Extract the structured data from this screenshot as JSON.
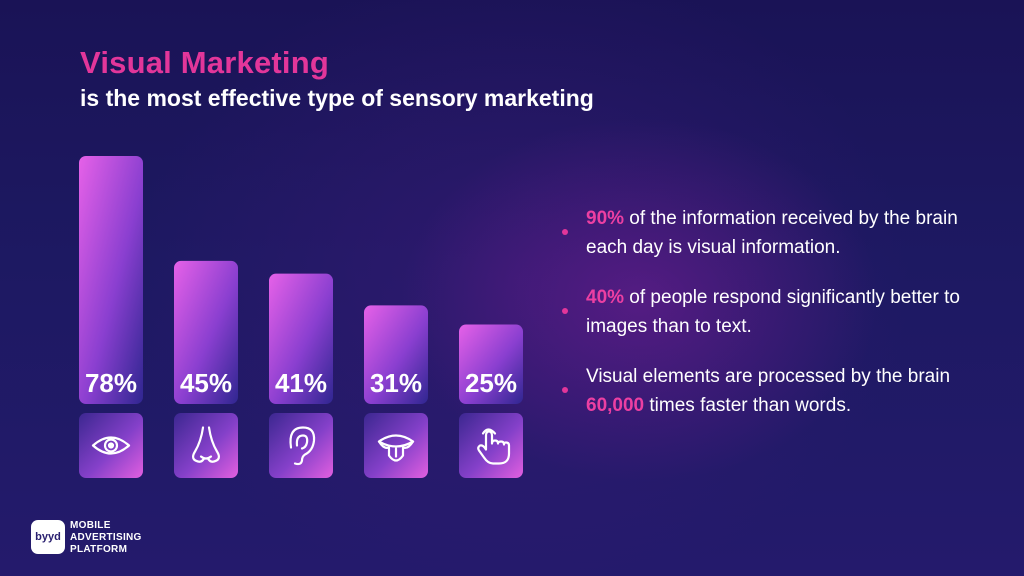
{
  "header": {
    "title": "Visual Marketing",
    "subtitle": "is the most effective type of sensory marketing"
  },
  "chart_data": {
    "type": "bar",
    "categories": [
      "sight",
      "smell",
      "hearing",
      "taste",
      "touch"
    ],
    "values": [
      78,
      45,
      41,
      31,
      25
    ],
    "value_labels": [
      "78%",
      "45%",
      "41%",
      "31%",
      "25%"
    ],
    "icons": [
      "eye-icon",
      "nose-icon",
      "ear-icon",
      "tongue-icon",
      "hand-touch-icon"
    ],
    "title": "",
    "xlabel": "",
    "ylabel": "",
    "ylim": [
      0,
      100
    ],
    "grid": false,
    "bar_gradient": [
      "#e661e8",
      "#3a2a9a"
    ]
  },
  "facts": [
    {
      "highlight": "90%",
      "pre": "",
      "post": " of the information received by the brain each day is visual information."
    },
    {
      "highlight": "40%",
      "pre": "",
      "post": " of people respond significantly better to images than to text."
    },
    {
      "highlight": "60,000",
      "pre": "Visual elements are processed by the brain ",
      "post": " times faster than words."
    }
  ],
  "logo": {
    "mark": "byyd",
    "lines": [
      "MOBILE",
      "ADVERTISING",
      "PLATFORM"
    ]
  },
  "colors": {
    "accent": "#e2369a",
    "background": "#1d1962"
  }
}
